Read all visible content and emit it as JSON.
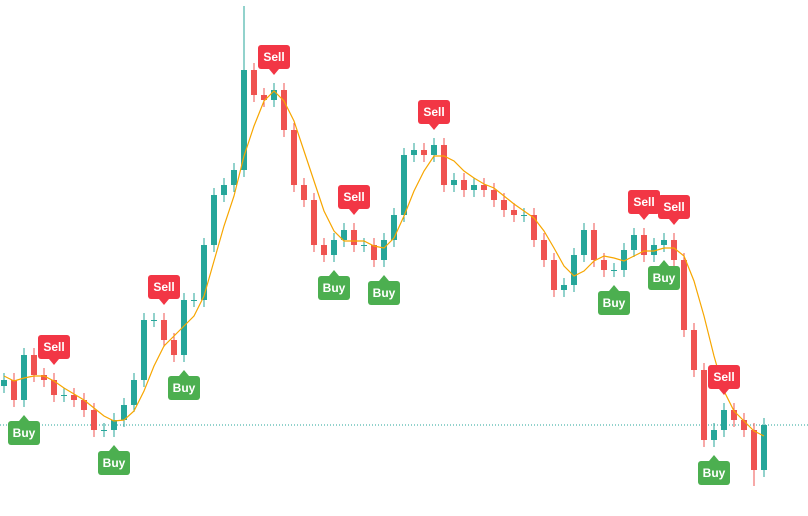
{
  "chart_data": {
    "type": "candlestick",
    "ylim": [
      0,
      516
    ],
    "up_color": "#26a69a",
    "down_color": "#ef5350",
    "open": [
      130,
      136,
      116,
      161,
      141,
      136,
      121,
      121,
      116,
      106,
      86,
      86,
      96,
      111,
      136,
      196,
      196,
      176,
      161,
      216,
      216,
      271,
      321,
      331,
      346,
      446,
      421,
      416,
      426,
      386,
      331,
      316,
      271,
      261,
      276,
      286,
      271,
      271,
      256,
      276,
      301,
      361,
      366,
      361,
      371,
      331,
      336,
      326,
      331,
      326,
      316,
      306,
      301,
      301,
      276,
      256,
      226,
      231,
      261,
      286,
      256,
      246,
      246,
      266,
      281,
      261,
      271,
      276,
      256,
      186,
      146,
      76,
      86,
      106,
      96,
      86,
      46
    ],
    "high": [
      143,
      143,
      168,
      168,
      148,
      143,
      128,
      128,
      123,
      113,
      93,
      103,
      118,
      143,
      203,
      203,
      203,
      183,
      223,
      223,
      278,
      328,
      338,
      353,
      510,
      453,
      428,
      433,
      433,
      393,
      338,
      323,
      278,
      283,
      293,
      293,
      278,
      278,
      283,
      308,
      368,
      373,
      373,
      378,
      378,
      343,
      343,
      338,
      338,
      333,
      323,
      313,
      308,
      308,
      283,
      263,
      238,
      268,
      293,
      293,
      263,
      253,
      273,
      288,
      288,
      278,
      283,
      283,
      263,
      193,
      153,
      93,
      113,
      113,
      103,
      93,
      98
    ],
    "low": [
      123,
      109,
      109,
      134,
      129,
      114,
      114,
      109,
      99,
      79,
      79,
      79,
      89,
      104,
      129,
      189,
      169,
      154,
      154,
      209,
      209,
      264,
      314,
      324,
      339,
      414,
      409,
      409,
      379,
      324,
      309,
      264,
      254,
      254,
      269,
      264,
      264,
      249,
      249,
      269,
      294,
      354,
      354,
      354,
      324,
      324,
      319,
      319,
      319,
      309,
      299,
      294,
      294,
      269,
      249,
      219,
      219,
      224,
      254,
      249,
      239,
      239,
      239,
      259,
      254,
      254,
      264,
      249,
      179,
      139,
      69,
      69,
      79,
      89,
      79,
      30,
      39
    ],
    "close": [
      136,
      116,
      161,
      141,
      136,
      121,
      121,
      116,
      106,
      86,
      86,
      96,
      111,
      136,
      196,
      196,
      176,
      161,
      216,
      216,
      271,
      321,
      331,
      346,
      446,
      421,
      416,
      426,
      386,
      331,
      316,
      271,
      261,
      276,
      286,
      271,
      271,
      256,
      276,
      301,
      361,
      366,
      361,
      371,
      331,
      336,
      326,
      331,
      326,
      316,
      306,
      301,
      301,
      276,
      256,
      226,
      231,
      261,
      286,
      256,
      246,
      246,
      266,
      281,
      261,
      271,
      276,
      256,
      186,
      146,
      76,
      86,
      106,
      96,
      86,
      46,
      91
    ],
    "moving_average": {
      "color": "#f7a600",
      "values": [
        140,
        135,
        138,
        140,
        140,
        135,
        128,
        122,
        116,
        108,
        100,
        95,
        96,
        105,
        125,
        150,
        170,
        180,
        190,
        200,
        220,
        255,
        290,
        320,
        360,
        390,
        415,
        425,
        415,
        395,
        365,
        335,
        305,
        285,
        275,
        275,
        275,
        270,
        268,
        278,
        300,
        325,
        345,
        360,
        360,
        355,
        345,
        338,
        332,
        328,
        320,
        312,
        305,
        298,
        285,
        268,
        250,
        240,
        245,
        255,
        260,
        258,
        255,
        260,
        265,
        265,
        268,
        268,
        260,
        235,
        200,
        160,
        125,
        105,
        95,
        85,
        80
      ]
    },
    "price_line": {
      "value": 91,
      "color": "#26a69a"
    },
    "signals": [
      {
        "index": 2,
        "label": "Buy",
        "color": "#4caf50"
      },
      {
        "index": 5,
        "label": "Sell",
        "color": "#f23645"
      },
      {
        "index": 11,
        "label": "Buy",
        "color": "#4caf50"
      },
      {
        "index": 16,
        "label": "Sell",
        "color": "#f23645"
      },
      {
        "index": 18,
        "label": "Buy",
        "color": "#4caf50"
      },
      {
        "index": 27,
        "label": "Sell",
        "color": "#f23645"
      },
      {
        "index": 33,
        "label": "Buy",
        "color": "#4caf50"
      },
      {
        "index": 35,
        "label": "Sell",
        "color": "#f23645"
      },
      {
        "index": 38,
        "label": "Buy",
        "color": "#4caf50"
      },
      {
        "index": 43,
        "label": "Sell",
        "color": "#f23645"
      },
      {
        "index": 61,
        "label": "Buy",
        "color": "#4caf50"
      },
      {
        "index": 64,
        "label": "Sell",
        "color": "#f23645"
      },
      {
        "index": 66,
        "label": "Buy",
        "color": "#4caf50"
      },
      {
        "index": 67,
        "label": "Sell",
        "color": "#f23645"
      },
      {
        "index": 71,
        "label": "Buy",
        "color": "#4caf50"
      },
      {
        "index": 72,
        "label": "Sell",
        "color": "#f23645"
      }
    ]
  }
}
